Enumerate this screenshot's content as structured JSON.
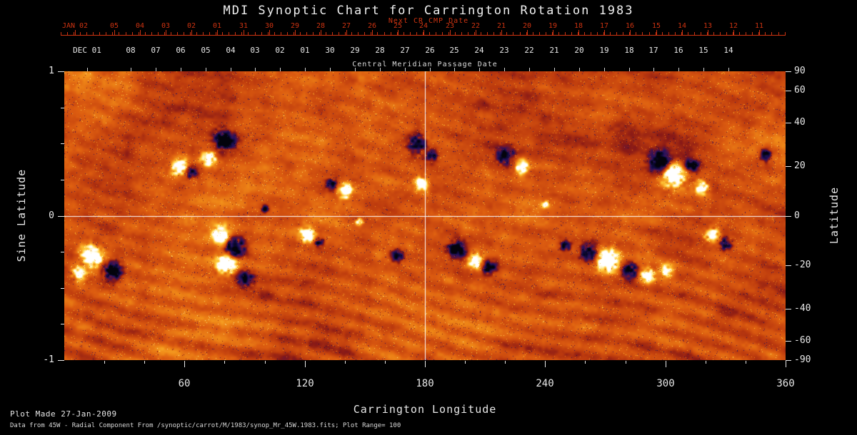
{
  "header": {
    "title": "MDI Synoptic Chart for Carrington Rotation 1983",
    "next_cr_label": "Next CR CMP Date",
    "cmp_label": "Central Meridian Passage Date"
  },
  "axes": {
    "top_red": {
      "labels": [
        "JAN 02",
        "05",
        "04",
        "03",
        "02",
        "01",
        "31",
        "30",
        "29",
        "28",
        "27",
        "26",
        "25",
        "24",
        "23",
        "22",
        "21",
        "20",
        "19",
        "18",
        "17",
        "16",
        "15",
        "14",
        "13",
        "12",
        "11"
      ]
    },
    "top_white": {
      "labels": [
        "DEC 01",
        "08",
        "07",
        "06",
        "05",
        "04",
        "03",
        "02",
        "01",
        "30",
        "29",
        "28",
        "27",
        "26",
        "25",
        "24",
        "23",
        "22",
        "21",
        "20",
        "19",
        "18",
        "17",
        "16",
        "15",
        "14"
      ]
    },
    "left": {
      "title": "Sine Latitude",
      "ticks": [
        1,
        0,
        -1
      ]
    },
    "right": {
      "title": "Latitude",
      "ticks": [
        90,
        60,
        40,
        20,
        0,
        -20,
        -40,
        -60,
        -90
      ]
    },
    "bottom": {
      "title": "Carrington Longitude",
      "ticks": [
        60,
        120,
        180,
        240,
        300,
        360
      ]
    }
  },
  "footer": {
    "line1": "Plot Made 27-Jan-2009",
    "line2": "Data from 45W - Radial Component From /synoptic/carrot/M/1983/synop_Mr_45W.1983.fits; Plot Range= 100"
  },
  "colors": {
    "accent_red": "#cc3311",
    "text": "#e8e8e8",
    "background": "#000000"
  },
  "chart_data": {
    "type": "heatmap",
    "title": "MDI Synoptic Chart for Carrington Rotation 1983",
    "xlabel": "Carrington Longitude",
    "ylabel": "Sine Latitude",
    "y2label": "Latitude",
    "xlim": [
      0,
      360
    ],
    "ylim": [
      -1,
      1
    ],
    "x_ticks": [
      60,
      120,
      180,
      240,
      300,
      360
    ],
    "y_ticks": [
      1,
      0,
      -1
    ],
    "y2_ticks": [
      90,
      60,
      40,
      20,
      0,
      -20,
      -40,
      -60,
      -90
    ],
    "plot_range": 100,
    "quantity": "radial magnetic field",
    "crosshair": {
      "longitude": 180,
      "sine_latitude": 0
    },
    "colormap_stops": [
      {
        "v": -1.0,
        "c": "#03030c"
      },
      {
        "v": -0.72,
        "c": "#0d0a3a"
      },
      {
        "v": -0.5,
        "c": "#27125e"
      },
      {
        "v": -0.3,
        "c": "#5c1440"
      },
      {
        "v": -0.15,
        "c": "#8a1a16"
      },
      {
        "v": 0.0,
        "c": "#bc3a0e"
      },
      {
        "v": 0.2,
        "c": "#dc5c10"
      },
      {
        "v": 0.4,
        "c": "#f08a18"
      },
      {
        "v": 0.6,
        "c": "#ffc838"
      },
      {
        "v": 0.8,
        "c": "#ffeea0"
      },
      {
        "v": 1.0,
        "c": "#ffffff"
      }
    ],
    "active_regions": [
      {
        "lon": 80,
        "slat": 0.52,
        "pol": -1,
        "r": 13,
        "amp": 1.4
      },
      {
        "lon": 72,
        "slat": 0.4,
        "pol": 1,
        "r": 10,
        "amp": 1.2
      },
      {
        "lon": 57,
        "slat": 0.34,
        "pol": 1,
        "r": 11,
        "amp": 1.3
      },
      {
        "lon": 63,
        "slat": 0.3,
        "pol": -1,
        "r": 8,
        "amp": 1.0
      },
      {
        "lon": 140,
        "slat": 0.17,
        "pol": 1,
        "r": 9,
        "amp": 1.4
      },
      {
        "lon": 133,
        "slat": 0.22,
        "pol": -1,
        "r": 7,
        "amp": 1.1
      },
      {
        "lon": 176,
        "slat": 0.5,
        "pol": -1,
        "r": 12,
        "amp": 1.3
      },
      {
        "lon": 183,
        "slat": 0.42,
        "pol": -1,
        "r": 8,
        "amp": 1.1
      },
      {
        "lon": 178,
        "slat": 0.22,
        "pol": 1,
        "r": 9,
        "amp": 1.3
      },
      {
        "lon": 220,
        "slat": 0.42,
        "pol": -1,
        "r": 11,
        "amp": 1.3
      },
      {
        "lon": 228,
        "slat": 0.34,
        "pol": 1,
        "r": 9,
        "amp": 1.2
      },
      {
        "lon": 297,
        "slat": 0.38,
        "pol": -1,
        "r": 13,
        "amp": 1.4
      },
      {
        "lon": 304,
        "slat": 0.28,
        "pol": 1,
        "r": 15,
        "amp": 1.5
      },
      {
        "lon": 313,
        "slat": 0.35,
        "pol": -1,
        "r": 9,
        "amp": 1.2
      },
      {
        "lon": 318,
        "slat": 0.2,
        "pol": 1,
        "r": 9,
        "amp": 1.3
      },
      {
        "lon": 350,
        "slat": 0.42,
        "pol": -1,
        "r": 8,
        "amp": 1.1
      },
      {
        "lon": 14,
        "slat": -0.28,
        "pol": 1,
        "r": 14,
        "amp": 1.5
      },
      {
        "lon": 24,
        "slat": -0.38,
        "pol": -1,
        "r": 12,
        "amp": 1.4
      },
      {
        "lon": 7,
        "slat": -0.4,
        "pol": 1,
        "r": 9,
        "amp": 1.2
      },
      {
        "lon": 78,
        "slat": -0.13,
        "pol": 1,
        "r": 11,
        "amp": 1.4
      },
      {
        "lon": 85,
        "slat": -0.22,
        "pol": -1,
        "r": 13,
        "amp": 1.6
      },
      {
        "lon": 81,
        "slat": -0.33,
        "pol": 1,
        "r": 13,
        "amp": 1.6
      },
      {
        "lon": 90,
        "slat": -0.43,
        "pol": -1,
        "r": 10,
        "amp": 1.3
      },
      {
        "lon": 121,
        "slat": -0.13,
        "pol": 1,
        "r": 9,
        "amp": 1.4
      },
      {
        "lon": 127,
        "slat": -0.18,
        "pol": -1,
        "r": 6,
        "amp": 1.0
      },
      {
        "lon": 166,
        "slat": -0.28,
        "pol": -1,
        "r": 8,
        "amp": 1.1
      },
      {
        "lon": 196,
        "slat": -0.23,
        "pol": -1,
        "r": 11,
        "amp": 1.3
      },
      {
        "lon": 205,
        "slat": -0.31,
        "pol": 1,
        "r": 10,
        "amp": 1.3
      },
      {
        "lon": 212,
        "slat": -0.36,
        "pol": -1,
        "r": 9,
        "amp": 1.2
      },
      {
        "lon": 250,
        "slat": -0.21,
        "pol": -1,
        "r": 7,
        "amp": 1.1
      },
      {
        "lon": 262,
        "slat": -0.25,
        "pol": -1,
        "r": 11,
        "amp": 1.3
      },
      {
        "lon": 271,
        "slat": -0.31,
        "pol": 1,
        "r": 14,
        "amp": 1.6
      },
      {
        "lon": 282,
        "slat": -0.38,
        "pol": -1,
        "r": 10,
        "amp": 1.3
      },
      {
        "lon": 291,
        "slat": -0.41,
        "pol": 1,
        "r": 9,
        "amp": 1.2
      },
      {
        "lon": 300,
        "slat": -0.38,
        "pol": 1,
        "r": 8,
        "amp": 1.2
      },
      {
        "lon": 323,
        "slat": -0.13,
        "pol": 1,
        "r": 9,
        "amp": 1.3
      },
      {
        "lon": 330,
        "slat": -0.19,
        "pol": -1,
        "r": 8,
        "amp": 1.1
      },
      {
        "lon": 100,
        "slat": 0.05,
        "pol": -1,
        "r": 5,
        "amp": 0.9
      },
      {
        "lon": 147,
        "slat": -0.04,
        "pol": 1,
        "r": 5,
        "amp": 0.9
      },
      {
        "lon": 240,
        "slat": 0.08,
        "pol": 1,
        "r": 5,
        "amp": 0.9
      }
    ]
  }
}
